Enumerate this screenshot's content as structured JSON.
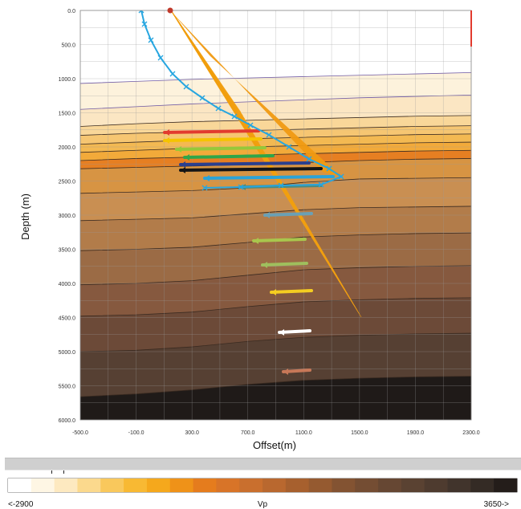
{
  "chart_data": {
    "type": "depth_model",
    "x_axis": {
      "label": "Offset(m)",
      "ticks": [
        "-500.0",
        "-100.0",
        "300.0",
        "700.0",
        "1100.0",
        "1500.0",
        "1900.0",
        "2300.0"
      ],
      "range": [
        -500,
        2300
      ]
    },
    "y_axis": {
      "label": "Depth (m)",
      "ticks": [
        "0.0",
        "500.0",
        "1000.0",
        "1500.0",
        "2000.0",
        "2500.0",
        "3000.0",
        "3500.0",
        "4000.0",
        "4500.0",
        "5000.0",
        "5500.0",
        "6000.0"
      ],
      "range": [
        0,
        6000
      ],
      "inverted": true
    },
    "grid": true,
    "colorbar": {
      "label": "Vp",
      "min_label": "<-2900",
      "max_label": "3650->",
      "range": [
        2900,
        3650
      ],
      "colors": [
        "#ffffff",
        "#fef6e4",
        "#fde9c0",
        "#fbd98d",
        "#f9c85c",
        "#f8b933",
        "#f5a81c",
        "#ef9218",
        "#e57c1d",
        "#d87428",
        "#c96f2e",
        "#b9682f",
        "#a7602e",
        "#955a30",
        "#835332",
        "#744d33",
        "#664733",
        "#5a4232",
        "#4e3b2f",
        "#41342c",
        "#342b25",
        "#241d1a"
      ]
    },
    "source": {
      "x": 150,
      "depth": 0
    },
    "well_path_color": "#27a6e0",
    "layer_fill_colors": [
      "#ffffff",
      "#fdf2dc",
      "#fbe6c3",
      "#f9d799",
      "#f6c672",
      "#f3b952",
      "#f2aa3a",
      "#e67f22",
      "#d79443",
      "#c98f52",
      "#b27c4a",
      "#9b6b45",
      "#86593f",
      "#6c4a38",
      "#564033",
      "#1f1a18"
    ]
  }
}
